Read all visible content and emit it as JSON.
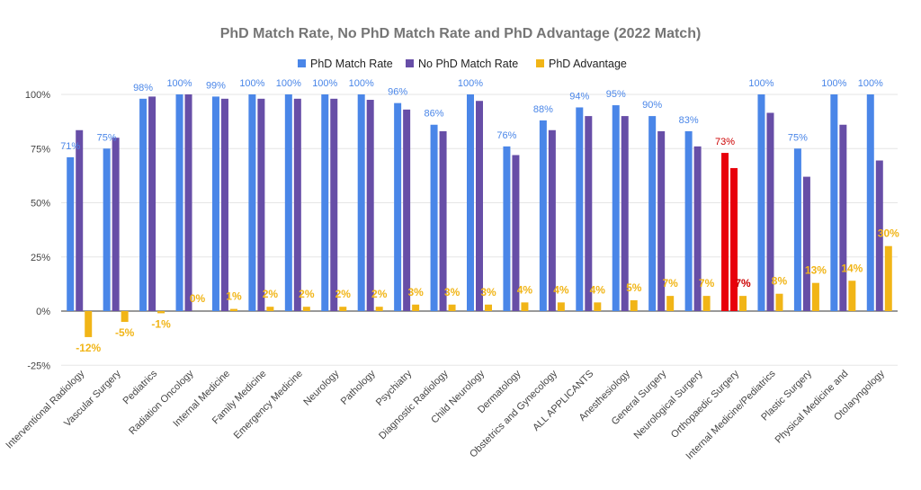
{
  "chart_data": {
    "type": "bar",
    "title": "PhD Match Rate, No PhD Match Rate and PhD Advantage (2022 Match)",
    "legend_position": "top",
    "grid": true,
    "ylim": [
      -25,
      100
    ],
    "yticks": [
      -25,
      0,
      25,
      50,
      75,
      100
    ],
    "ytick_labels": [
      "-25%",
      "0%",
      "25%",
      "50%",
      "75%",
      "100%"
    ],
    "categories": [
      "Interventional Radiology",
      "Vascular Surgery",
      "Pediatrics",
      "Radiation Oncology",
      "Internal Medicine",
      "Family Medicine",
      "Emergency Medicine",
      "Neurology",
      "Pathology",
      "Psychiatry",
      "Diagnostic Radiology",
      "Child Neurology",
      "Dermatology",
      "Obstetrics and Gynecology",
      "ALL APPLICANTS",
      "Anesthesiology",
      "General Surgery",
      "Neurological Surgery",
      "Orthopaedic Surgery",
      "Internal Medicine/Pediatrics",
      "Plastic Surgery",
      "Physical Medicine and",
      "Otolaryngology"
    ],
    "series": [
      {
        "name": "PhD Match Rate",
        "color": "#4a86e8",
        "values": [
          71,
          75,
          98,
          100,
          99,
          100,
          100,
          100,
          100,
          96,
          86,
          100,
          76,
          88,
          94,
          95,
          90,
          83,
          73,
          100,
          75,
          100,
          100
        ],
        "labels": [
          "71%",
          "75%",
          "98%",
          "100%",
          "99%",
          "100%",
          "100%",
          "100%",
          "100%",
          "96%",
          "86%",
          "100%",
          "76%",
          "88%",
          "94%",
          "95%",
          "90%",
          "83%",
          "73%",
          "100%",
          "75%",
          "100%",
          "100%"
        ]
      },
      {
        "name": "No PhD Match Rate",
        "color": "#674ea7",
        "values": [
          83.5,
          80,
          99,
          100,
          98,
          98,
          98,
          98,
          97.5,
          93,
          83,
          97,
          72,
          83.5,
          90,
          90,
          83,
          76,
          66,
          91.5,
          62,
          86,
          69.5
        ]
      },
      {
        "name": "PhD Advantage",
        "color": "#f1b517",
        "values": [
          -12,
          -5,
          -1,
          0,
          1,
          2,
          2,
          2,
          2,
          3,
          3,
          3,
          4,
          4,
          4,
          5,
          7,
          7,
          7,
          8,
          13,
          14,
          30
        ],
        "labels": [
          "-12%",
          "-5%",
          "-1%",
          "0%",
          "1%",
          "2%",
          "2%",
          "2%",
          "2%",
          "3%",
          "3%",
          "3%",
          "4%",
          "4%",
          "4%",
          "5%",
          "7%",
          "7%",
          "7%",
          "8%",
          "13%",
          "14%",
          "30%"
        ]
      }
    ],
    "highlight": {
      "category": "Orthopaedic Surgery",
      "color": "#e8000b"
    },
    "label_colors": {
      "phd": "#4a86e8",
      "advantage": "#f1b517",
      "highlight": "#cc0000"
    }
  }
}
